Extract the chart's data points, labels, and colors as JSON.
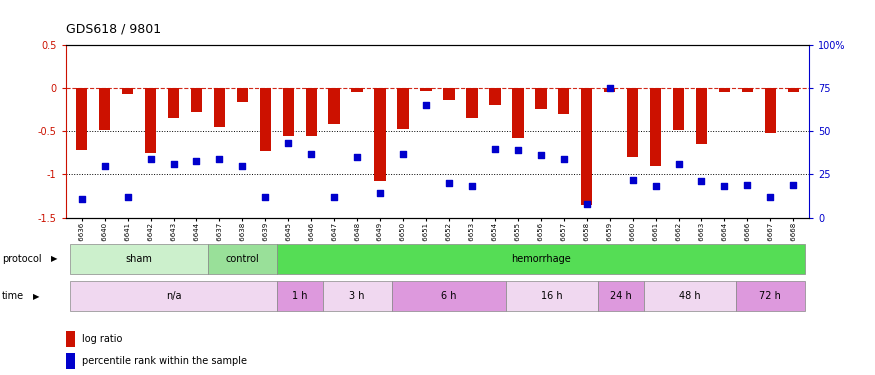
{
  "title": "GDS618 / 9801",
  "samples": [
    "GSM16636",
    "GSM16640",
    "GSM16641",
    "GSM16642",
    "GSM16643",
    "GSM16644",
    "GSM16637",
    "GSM16638",
    "GSM16639",
    "GSM16645",
    "GSM16646",
    "GSM16647",
    "GSM16648",
    "GSM16649",
    "GSM16650",
    "GSM16651",
    "GSM16652",
    "GSM16653",
    "GSM16654",
    "GSM16655",
    "GSM16656",
    "GSM16657",
    "GSM16658",
    "GSM16659",
    "GSM16660",
    "GSM16661",
    "GSM16662",
    "GSM16663",
    "GSM16664",
    "GSM16666",
    "GSM16667",
    "GSM16668"
  ],
  "log_ratio": [
    -0.72,
    -0.48,
    -0.07,
    -0.75,
    -0.35,
    -0.28,
    -0.45,
    -0.16,
    -0.73,
    -0.55,
    -0.56,
    -0.42,
    -0.05,
    -1.08,
    -0.47,
    -0.03,
    -0.14,
    -0.35,
    -0.19,
    -0.58,
    -0.24,
    -0.3,
    -1.35,
    -0.05,
    -0.8,
    -0.9,
    -0.48,
    -0.65,
    -0.05,
    -0.05,
    -0.52,
    -0.05
  ],
  "percentile": [
    11,
    30,
    12,
    34,
    31,
    33,
    34,
    30,
    12,
    43,
    37,
    12,
    35,
    14,
    37,
    65,
    20,
    18,
    40,
    39,
    36,
    34,
    8,
    75,
    22,
    18,
    31,
    21,
    18,
    19,
    12,
    19
  ],
  "protocol_groups": [
    {
      "label": "sham",
      "start": 0,
      "end": 6,
      "color": "#ccf0cc"
    },
    {
      "label": "control",
      "start": 6,
      "end": 9,
      "color": "#99e099"
    },
    {
      "label": "hemorrhage",
      "start": 9,
      "end": 32,
      "color": "#55dd55"
    }
  ],
  "time_groups": [
    {
      "label": "n/a",
      "start": 0,
      "end": 9,
      "color": "#f0d8f0"
    },
    {
      "label": "1 h",
      "start": 9,
      "end": 11,
      "color": "#dd99dd"
    },
    {
      "label": "3 h",
      "start": 11,
      "end": 14,
      "color": "#f0d8f0"
    },
    {
      "label": "6 h",
      "start": 14,
      "end": 19,
      "color": "#dd99dd"
    },
    {
      "label": "16 h",
      "start": 19,
      "end": 23,
      "color": "#f0d8f0"
    },
    {
      "label": "24 h",
      "start": 23,
      "end": 25,
      "color": "#dd99dd"
    },
    {
      "label": "48 h",
      "start": 25,
      "end": 29,
      "color": "#f0d8f0"
    },
    {
      "label": "72 h",
      "start": 29,
      "end": 32,
      "color": "#dd99dd"
    }
  ],
  "bar_color": "#cc1100",
  "dot_color": "#0000cc",
  "ylim_left": [
    -1.5,
    0.5
  ],
  "ylim_right": [
    0,
    100
  ],
  "yticks_left": [
    -1.5,
    -1.0,
    -0.5,
    0.0,
    0.5
  ],
  "ytick_labels_left": [
    "-1.5",
    "-1",
    "-0.5",
    "0",
    "0.5"
  ],
  "yticks_right": [
    0,
    25,
    50,
    75,
    100
  ],
  "ytick_labels_right": [
    "0",
    "25",
    "50",
    "75",
    "100%"
  ]
}
